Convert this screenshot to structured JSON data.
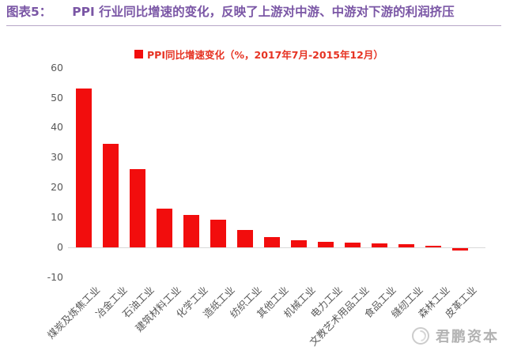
{
  "header": {
    "title_prefix": "图表5：",
    "title_text": "PPI 行业同比增速的变化，反映了上游对中游、中游对下游的利润挤压"
  },
  "chart_data": {
    "type": "bar",
    "title": "",
    "legend": "PPI同比增速变化（%，2017年7月-2015年12月）",
    "legend_position": "top",
    "categories": [
      "煤炭及炼焦工业",
      "冶金工业",
      "石油工业",
      "建筑材料工业",
      "化学工业",
      "造纸工业",
      "纺织工业",
      "其他工业",
      "机械工业",
      "电力工业",
      "文教艺术用品工业",
      "食品工业",
      "缝纫工业",
      "森林工业",
      "皮革工业"
    ],
    "values": [
      53,
      34.5,
      26,
      12.8,
      10.8,
      9.2,
      5.8,
      3.4,
      2.4,
      1.9,
      1.5,
      1.3,
      1.1,
      0.6,
      -0.8
    ],
    "xlabel": "",
    "ylabel": "",
    "ylim": [
      -10,
      60
    ],
    "yticks": [
      60,
      50,
      40,
      30,
      20,
      10,
      0,
      -10
    ],
    "grid": false
  },
  "watermark": {
    "logo": "junpeng-logo-icon",
    "text": "君鹏资本"
  },
  "colors": {
    "title": "#7a56a5",
    "underline": "#b7a6c7",
    "accent_red": "#f20d0d",
    "legend_text": "#e63323",
    "axis_gray": "#595959",
    "baseline": "#d9d9d9",
    "watermark_gray": "#b3b3b3"
  }
}
